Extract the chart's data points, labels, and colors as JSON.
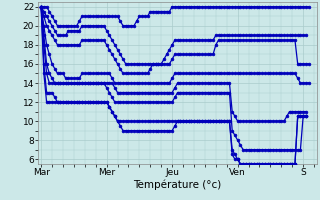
{
  "xlabel": "Température (°c)",
  "background_color": "#cce8e8",
  "grid_color": "#aacccc",
  "line_color": "#0000bb",
  "marker": "o",
  "markersize": 2.0,
  "linewidth": 0.9,
  "ylim": [
    5.5,
    22.5
  ],
  "yticks": [
    6,
    8,
    10,
    12,
    14,
    16,
    18,
    20,
    22
  ],
  "xtick_labels": [
    "Mar",
    "Mer",
    "Jeu",
    "Ven",
    "S"
  ],
  "xtick_pos": [
    0,
    24,
    48,
    72,
    96
  ],
  "xlim": [
    -1,
    101
  ],
  "lines": [
    [
      22,
      22,
      22,
      21.5,
      21,
      20.5,
      20,
      20,
      20,
      20,
      20,
      20,
      20,
      20,
      20.5,
      21,
      21,
      21,
      21,
      21,
      21,
      21,
      21,
      21,
      21,
      21,
      21,
      21,
      21,
      20.5,
      20,
      20,
      20,
      20,
      20,
      20.5,
      21,
      21,
      21,
      21,
      21.5,
      21.5,
      21.5,
      21.5,
      21.5,
      21.5,
      21.5,
      21.5,
      22,
      22,
      22,
      22,
      22,
      22,
      22,
      22,
      22,
      22,
      22,
      22,
      22,
      22,
      22,
      22,
      22,
      22,
      22,
      22,
      22,
      22,
      22,
      22,
      22,
      22,
      22,
      22,
      22,
      22,
      22,
      22,
      22,
      22,
      22,
      22,
      22,
      22,
      22,
      22,
      22,
      22,
      22,
      22,
      22,
      22,
      22,
      22,
      22,
      22,
      22
    ],
    [
      22,
      21.5,
      21,
      20.5,
      20,
      19.5,
      19,
      19,
      19,
      19,
      19.5,
      19.5,
      19.5,
      19.5,
      19.5,
      20,
      20,
      20,
      20,
      20,
      20,
      20,
      20,
      20,
      19.5,
      19,
      18.5,
      18,
      17.5,
      17,
      16.5,
      16,
      16,
      16,
      16,
      16,
      16,
      16,
      16,
      16,
      16,
      16,
      16,
      16,
      16,
      16.5,
      17,
      17.5,
      18,
      18.5,
      18.5,
      18.5,
      18.5,
      18.5,
      18.5,
      18.5,
      18.5,
      18.5,
      18.5,
      18.5,
      18.5,
      18.5,
      18.5,
      18.5,
      19,
      19,
      19,
      19,
      19,
      19,
      19,
      19,
      19,
      19,
      19,
      19,
      19,
      19,
      19,
      19,
      19,
      19,
      19,
      19,
      19,
      19,
      19,
      19,
      19,
      19,
      19,
      19,
      19,
      19,
      19,
      19,
      19,
      19
    ],
    [
      22,
      21,
      20,
      19.5,
      19,
      18.5,
      18,
      18,
      18,
      18,
      18,
      18,
      18,
      18,
      18,
      18.5,
      18.5,
      18.5,
      18.5,
      18.5,
      18.5,
      18.5,
      18.5,
      18.5,
      18,
      17.5,
      17,
      16.5,
      16,
      15.5,
      15,
      15,
      15,
      15,
      15,
      15,
      15,
      15,
      15,
      15,
      15.5,
      16,
      16,
      16,
      16,
      16,
      16,
      16,
      16.5,
      17,
      17,
      17,
      17,
      17,
      17,
      17,
      17,
      17,
      17,
      17,
      17,
      17,
      17,
      17,
      18,
      18.5,
      18.5,
      18.5,
      18.5,
      18.5,
      18.5,
      18.5,
      18.5,
      18.5,
      18.5,
      18.5,
      18.5,
      18.5,
      18.5,
      18.5,
      18.5,
      18.5,
      18.5,
      18.5,
      18.5,
      18.5,
      18.5,
      18.5,
      18.5,
      18.5,
      18.5,
      18.5,
      18.5,
      18.5,
      16,
      16,
      16,
      16,
      16
    ],
    [
      22,
      20,
      18,
      17,
      16,
      15.5,
      15,
      15,
      15,
      14.5,
      14.5,
      14.5,
      14.5,
      14.5,
      14.5,
      15,
      15,
      15,
      15,
      15,
      15,
      15,
      15,
      15,
      15,
      15,
      14.5,
      14,
      14,
      14,
      14,
      14,
      14,
      14,
      14,
      14,
      14,
      14,
      14,
      14,
      14,
      14,
      14,
      14,
      14,
      14,
      14,
      14,
      14.5,
      15,
      15,
      15,
      15,
      15,
      15,
      15,
      15,
      15,
      15,
      15,
      15,
      15,
      15,
      15,
      15,
      15,
      15,
      15,
      15,
      15,
      15,
      15,
      15,
      15,
      15,
      15,
      15,
      15,
      15,
      15,
      15,
      15,
      15,
      15,
      15,
      15,
      15,
      15,
      15,
      15,
      15,
      15,
      15,
      15,
      14.5,
      14,
      14,
      14,
      14
    ],
    [
      22,
      19,
      16,
      15,
      14.5,
      14,
      14,
      14,
      14,
      14,
      14,
      14,
      14,
      14,
      14,
      14,
      14,
      14,
      14,
      14,
      14,
      14,
      14,
      14,
      14,
      14,
      14,
      13.5,
      13,
      13,
      13,
      13,
      13,
      13,
      13,
      13,
      13,
      13,
      13,
      13,
      13,
      13,
      13,
      13,
      13,
      13,
      13,
      13,
      13,
      13.5,
      14,
      14,
      14,
      14,
      14,
      14,
      14,
      14,
      14,
      14,
      14,
      14,
      14,
      14,
      14,
      14,
      14,
      14,
      14,
      14,
      11,
      10.5,
      10,
      10,
      10,
      10,
      10,
      10,
      10,
      10,
      10,
      10,
      10,
      10,
      10,
      10,
      10,
      10,
      10,
      10,
      10.5,
      11,
      11,
      11,
      11,
      11,
      11,
      11
    ],
    [
      22,
      18,
      15,
      14,
      14,
      14,
      14,
      14,
      14,
      14,
      14,
      14,
      14,
      14,
      14,
      14,
      14,
      14,
      14,
      14,
      14,
      14,
      14,
      14,
      13.5,
      13,
      12.5,
      12,
      12,
      12,
      12,
      12,
      12,
      12,
      12,
      12,
      12,
      12,
      12,
      12,
      12,
      12,
      12,
      12,
      12,
      12,
      12,
      12,
      12,
      12.5,
      13,
      13,
      13,
      13,
      13,
      13,
      13,
      13,
      13,
      13,
      13,
      13,
      13,
      13,
      13,
      13,
      13,
      13,
      13,
      13,
      9,
      8.5,
      8,
      7.5,
      7,
      7,
      7,
      7,
      7,
      7,
      7,
      7,
      7,
      7,
      7,
      7,
      7,
      7,
      7,
      7,
      7,
      7,
      7,
      7,
      7,
      7,
      10.5,
      10.5
    ],
    [
      22,
      16,
      13,
      13,
      13,
      12.5,
      12,
      12,
      12,
      12,
      12,
      12,
      12,
      12,
      12,
      12,
      12,
      12,
      12,
      12,
      12,
      12,
      12,
      12,
      12,
      11.5,
      11,
      10.5,
      10,
      10,
      10,
      10,
      10,
      10,
      10,
      10,
      10,
      10,
      10,
      10,
      10,
      10,
      10,
      10,
      10,
      10,
      10,
      10,
      10,
      10,
      10,
      10,
      10,
      10,
      10,
      10,
      10,
      10,
      10,
      10,
      10,
      10,
      10,
      10,
      10,
      10,
      10,
      10,
      10,
      10,
      7,
      6.5,
      6,
      5.5,
      5.5,
      5.5,
      5.5,
      5.5,
      5.5,
      5.5,
      5.5,
      5.5,
      5.5,
      5.5,
      5.5,
      5.5,
      5.5,
      5.5,
      5.5,
      5.5,
      5.5,
      5.5,
      5.5,
      5.5,
      10.5,
      10.5,
      10.5,
      10.5
    ],
    [
      22,
      15,
      12,
      12,
      12,
      12,
      12,
      12,
      12,
      12,
      12,
      12,
      12,
      12,
      12,
      12,
      12,
      12,
      12,
      12,
      12,
      12,
      12,
      12,
      12,
      11.5,
      11,
      10.5,
      10,
      9.5,
      9,
      9,
      9,
      9,
      9,
      9,
      9,
      9,
      9,
      9,
      9,
      9,
      9,
      9,
      9,
      9,
      9,
      9,
      9,
      9.5,
      10,
      10,
      10,
      10,
      10,
      10,
      10,
      10,
      10,
      10,
      10,
      10,
      10,
      10,
      10,
      10,
      10,
      10,
      10,
      10,
      6.5,
      6,
      6,
      5.5,
      5.5,
      5.5,
      5.5,
      5.5,
      5.5,
      5.5,
      5.5,
      5.5,
      5.5,
      5.5,
      5.5,
      5.5,
      5.5,
      5.5,
      5.5,
      5.5,
      5.5,
      5.5,
      5.5,
      5.5,
      10.5,
      10.5,
      10.5,
      10.5
    ]
  ]
}
